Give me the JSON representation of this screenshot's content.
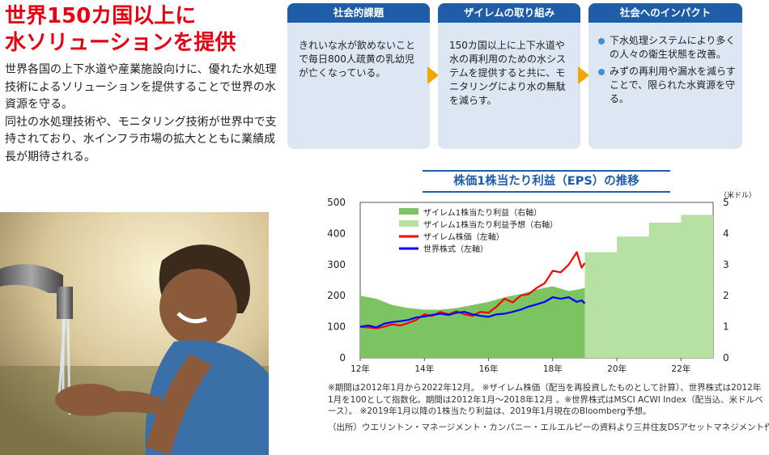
{
  "headline": {
    "line1": "世界150カ国以上に",
    "line2": "水ソリューションを提供"
  },
  "body": {
    "p1": "世界各国の上下水道や産業施設向けに、優れた水処理技術によるソリューションを提供することで世界の水資源を守る。",
    "p2": "同社の水処理技術や、モニタリング技術が世界中で支持されており、水インフラ市場の拡大とともに業績成長が期待される。"
  },
  "cards": [
    {
      "title": "社会的課題",
      "text": "きれいな水が飲めないことで毎日800人疏黄の乳幼児が亡くなっている。"
    },
    {
      "title": "ザイレムの取り組み",
      "text": "150カ国以上に上下水道や水の再利用のための水システムを提供すると共に、モニタリングにより水の無駄を減らす。"
    },
    {
      "title": "社会へのインパクト",
      "bullets": [
        "下水処理システムにより多くの人々の衛生状態を改善。",
        "みずの再利用や漏水を減らすことで、限られた水資源を守る。"
      ]
    }
  ],
  "chart_data": {
    "type": "area",
    "title": "株価1株当たり利益（EPS）の推移",
    "right_unit": "（米ドル）",
    "x_ticks": [
      "12年",
      "14年",
      "16年",
      "18年",
      "20年",
      "22年"
    ],
    "y_left": {
      "range": [
        0,
        500
      ],
      "ticks": [
        "0",
        "100",
        "200",
        "300",
        "400",
        "500"
      ]
    },
    "y_right": {
      "range": [
        0,
        5
      ],
      "ticks": [
        "0",
        "1",
        "2",
        "3",
        "4",
        "5"
      ]
    },
    "legend": [
      {
        "label": "ザイレム1株当たり利益（右軸）",
        "color": "#7cc462"
      },
      {
        "label": "ザイレム1株当たり利益予想（右軸）",
        "color": "#b7e0a3"
      },
      {
        "label": "ザイレム株価（左軸）",
        "color": "#ff0000"
      },
      {
        "label": "世界株式（左軸）",
        "color": "#0000ff"
      }
    ],
    "series": [
      {
        "name": "ザイレム1株当たり利益（右軸）",
        "axis": "right",
        "style": "area",
        "color": "#7cc462",
        "points": [
          [
            2012.0,
            2.0
          ],
          [
            2012.5,
            1.9
          ],
          [
            2013.0,
            1.7
          ],
          [
            2013.5,
            1.6
          ],
          [
            2014.0,
            1.55
          ],
          [
            2014.5,
            1.55
          ],
          [
            2015.0,
            1.6
          ],
          [
            2015.5,
            1.7
          ],
          [
            2016.0,
            1.8
          ],
          [
            2016.5,
            1.95
          ],
          [
            2017.0,
            2.05
          ],
          [
            2017.5,
            2.2
          ],
          [
            2018.0,
            2.3
          ],
          [
            2018.5,
            2.15
          ],
          [
            2018.8,
            2.2
          ],
          [
            2019.0,
            2.25
          ]
        ]
      },
      {
        "name": "ザイレム1株当たり利益予想（右軸）",
        "axis": "right",
        "style": "step",
        "color": "#b7e0a3",
        "points": [
          [
            2019.0,
            3.4
          ],
          [
            2020.0,
            3.9
          ],
          [
            2021.0,
            4.35
          ],
          [
            2022.0,
            4.6
          ],
          [
            2023.0,
            4.6
          ]
        ]
      },
      {
        "name": "ザイレム株価（左軸）",
        "axis": "left",
        "style": "line",
        "color": "#ff0000",
        "points": [
          [
            2012.0,
            100
          ],
          [
            2012.25,
            98
          ],
          [
            2012.5,
            95
          ],
          [
            2012.75,
            100
          ],
          [
            2013.0,
            108
          ],
          [
            2013.25,
            104
          ],
          [
            2013.5,
            112
          ],
          [
            2013.75,
            122
          ],
          [
            2014.0,
            140
          ],
          [
            2014.25,
            135
          ],
          [
            2014.5,
            148
          ],
          [
            2014.75,
            140
          ],
          [
            2015.0,
            150
          ],
          [
            2015.25,
            140
          ],
          [
            2015.5,
            135
          ],
          [
            2015.75,
            148
          ],
          [
            2016.0,
            145
          ],
          [
            2016.25,
            165
          ],
          [
            2016.5,
            190
          ],
          [
            2016.75,
            178
          ],
          [
            2017.0,
            200
          ],
          [
            2017.25,
            205
          ],
          [
            2017.5,
            225
          ],
          [
            2017.75,
            240
          ],
          [
            2018.0,
            280
          ],
          [
            2018.25,
            275
          ],
          [
            2018.5,
            300
          ],
          [
            2018.75,
            340
          ],
          [
            2018.9,
            290
          ],
          [
            2019.0,
            305
          ]
        ]
      },
      {
        "name": "世界株式（左軸）",
        "axis": "left",
        "style": "line",
        "color": "#0000ff",
        "points": [
          [
            2012.0,
            100
          ],
          [
            2012.25,
            104
          ],
          [
            2012.5,
            98
          ],
          [
            2012.75,
            110
          ],
          [
            2013.0,
            115
          ],
          [
            2013.25,
            118
          ],
          [
            2013.5,
            122
          ],
          [
            2013.75,
            130
          ],
          [
            2014.0,
            133
          ],
          [
            2014.25,
            138
          ],
          [
            2014.5,
            142
          ],
          [
            2014.75,
            138
          ],
          [
            2015.0,
            145
          ],
          [
            2015.25,
            148
          ],
          [
            2015.5,
            140
          ],
          [
            2015.75,
            135
          ],
          [
            2016.0,
            132
          ],
          [
            2016.25,
            140
          ],
          [
            2016.5,
            142
          ],
          [
            2016.75,
            148
          ],
          [
            2017.0,
            155
          ],
          [
            2017.25,
            165
          ],
          [
            2017.5,
            172
          ],
          [
            2017.75,
            180
          ],
          [
            2018.0,
            195
          ],
          [
            2018.25,
            190
          ],
          [
            2018.5,
            195
          ],
          [
            2018.75,
            180
          ],
          [
            2018.9,
            185
          ],
          [
            2019.0,
            175
          ]
        ]
      }
    ]
  },
  "notes": {
    "line1": "※期間は2012年1月から2022年12月。 ※ザイレム株価（配当を再投資したものとして計算）、世界株式は2012年1月を100として指数化。期間は2012年1月～2018年12月 。※世界株式はMSCI ACWI Index（配当込、米ドルベース）。 ※2019年1月以降の1株当たり利益は、2019年1月現在のBloomberg予想。"
  },
  "source": "（出所）ウエリントン・マネージメント・カンパニー・エルエルピーの資料より三井住友DSアセットマネジメント作成"
}
